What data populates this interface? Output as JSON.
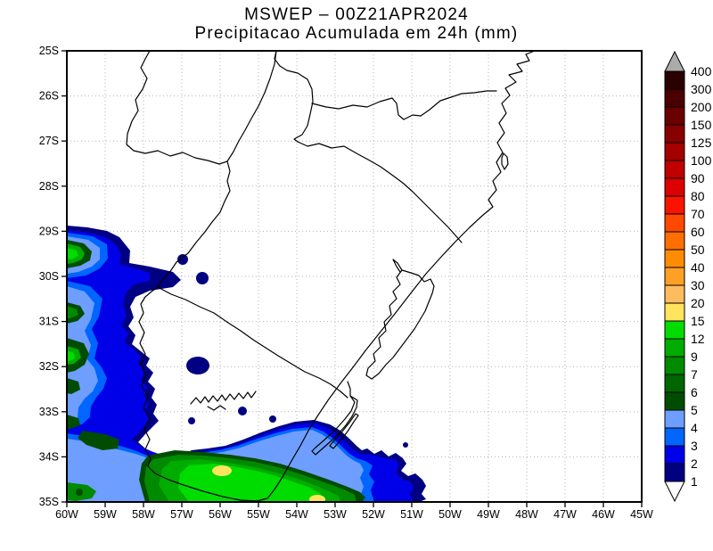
{
  "title": {
    "line1": "MSWEP – 00Z21APR2024",
    "line2": "Precipitacao Acumulada em 24h (mm)"
  },
  "axes": {
    "lat_ticks": [
      "25S",
      "26S",
      "27S",
      "28S",
      "29S",
      "30S",
      "31S",
      "32S",
      "33S",
      "34S",
      "35S"
    ],
    "lon_ticks": [
      "60W",
      "59W",
      "58W",
      "57W",
      "56W",
      "55W",
      "54W",
      "53W",
      "52W",
      "51W",
      "50W",
      "49W",
      "48W",
      "47W",
      "46W",
      "45W"
    ]
  },
  "palette": {
    "1": "#000082",
    "2": "#0000E8",
    "3": "#0066FF",
    "4": "#6E9EFF",
    "5": "#004C00",
    "6": "#006600",
    "7": "#008A00",
    "9": "#00AC00",
    "12": "#00DC00",
    "15": "#FFE45E",
    "20": "#FFBC5F",
    "30": "#FFA026",
    "40": "#FF8C00",
    "50": "#FF6E00",
    "60": "#FF4800",
    "70": "#FA1400",
    "80": "#DC0000",
    "90": "#C00000",
    "100": "#A40000",
    "125": "#880000",
    "150": "#6A0000",
    "200": "#4A0000",
    "300": "#2A0000"
  },
  "colorbar": {
    "labels": [
      "400",
      "300",
      "200",
      "150",
      "125",
      "100",
      "90",
      "80",
      "70",
      "60",
      "50",
      "40",
      "30",
      "20",
      "15",
      "12",
      "9",
      "7",
      "6",
      "5",
      "4",
      "3",
      "2",
      "1"
    ],
    "segment_keys": [
      "300",
      "200",
      "150",
      "125",
      "100",
      "90",
      "80",
      "70",
      "60",
      "50",
      "40",
      "30",
      "20",
      "15",
      "12",
      "9",
      "7",
      "6",
      "5",
      "4",
      "3",
      "2",
      "1"
    ],
    "over_color": "#ABABAB",
    "under_color": "#FFFFFF"
  },
  "chart_data": {
    "type": "heatmap",
    "title": "MSWEP – 00Z21APR2024",
    "subtitle": "Precipitacao Acumulada em 24h (mm)",
    "units": "mm / 24h",
    "x_range_lon": [
      "60W",
      "45W"
    ],
    "y_range_lat": [
      "25S",
      "35S"
    ],
    "grid": "dotted 1-degree graticule",
    "legend_position": "right colorbar with over (gray) and under (white) triangles",
    "thresholds_mm": [
      1,
      2,
      3,
      4,
      5,
      6,
      7,
      9,
      12,
      15,
      20,
      30,
      40,
      50,
      60,
      70,
      80,
      90,
      100,
      125,
      150,
      200,
      300,
      400
    ],
    "features": [
      {
        "area": "western strip along 60W edge, 29S–35S (NE Argentina border)",
        "max_mm": "9–15",
        "note": "north–south band of 1–15 mm hugging the west frame; green cores near 29.5S, 31.3S, 31.9S and 32.4S"
      },
      {
        "area": "southern band 57.5W–51W, 33.8S–35S (Uruguay / far southern RS)",
        "max_mm": "15–20",
        "note": "WNW–ESE band; 12–15 mm core with yellow 15–20 mm maxima near 55.9W 34.3S and 53.5W 34.9S"
      },
      {
        "area": "small isolated cells near 57W 28.9S, 56.5W 29.9S, 56.6W 32.9–33.3S",
        "max_mm": "1–2",
        "note": "scattered 1–2 mm specks"
      },
      {
        "area": "remainder of domain (RS/SC/PR interior and coast, ocean)",
        "max_mm": "0",
        "note": "no accumulated precipitation (white)"
      }
    ]
  }
}
